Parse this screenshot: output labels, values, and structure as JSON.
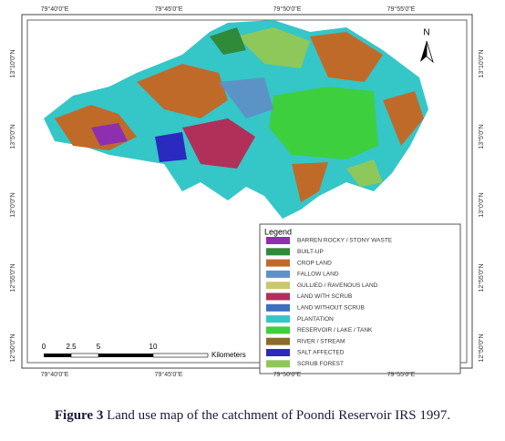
{
  "map": {
    "top_labels": [
      "79°40'0\"E",
      "79°45'0\"E",
      "79°50'0\"E",
      "79°55'0\"E"
    ],
    "bottom_labels": [
      "79°40'0\"E",
      "79°45'0\"E",
      "79°50'0\"E",
      "79°55'0\"E"
    ],
    "left_labels": [
      "13°10'0\"N",
      "13°5'0\"N",
      "13°0'0\"N",
      "12°55'0\"N",
      "12°50'0\"N"
    ],
    "right_labels": [
      "13°10'0\"N",
      "13°5'0\"N",
      "13°0'0\"N",
      "12°55'0\"N",
      "12°50'0\"N"
    ],
    "north": "N",
    "scale": {
      "ticks": [
        "0",
        "2.5",
        "5",
        "10"
      ],
      "unit": "Kilometers"
    },
    "legend": {
      "title": "Legend",
      "items": [
        {
          "label": "BARREN ROCKY / STONY WASTE",
          "color": "#8e2fb0"
        },
        {
          "label": "BUILT-UP",
          "color": "#2f8a3a"
        },
        {
          "label": "CROP LAND",
          "color": "#c06a2a"
        },
        {
          "label": "FALLOW LAND",
          "color": "#5b93c7"
        },
        {
          "label": "GULLIED / RAVENOUS LAND",
          "color": "#c9c96a"
        },
        {
          "label": "LAND WITH SCRUB",
          "color": "#b0305a"
        },
        {
          "label": "LAND WITHOUT SCRUB",
          "color": "#3b6fc0"
        },
        {
          "label": "PLANTATION",
          "color": "#35c6c8"
        },
        {
          "label": "RESERVOIR / LAKE / TANK",
          "color": "#3ecf3e"
        },
        {
          "label": "RIVER / STREAM",
          "color": "#8a6b2a"
        },
        {
          "label": "SALT AFFECTED",
          "color": "#2a2ac0"
        },
        {
          "label": "SCRUB FOREST",
          "color": "#8fc85a"
        }
      ]
    }
  },
  "caption": {
    "label": "Figure 3",
    "text": "Land use map of the catchment of Poondi Reservoir IRS 1997."
  }
}
